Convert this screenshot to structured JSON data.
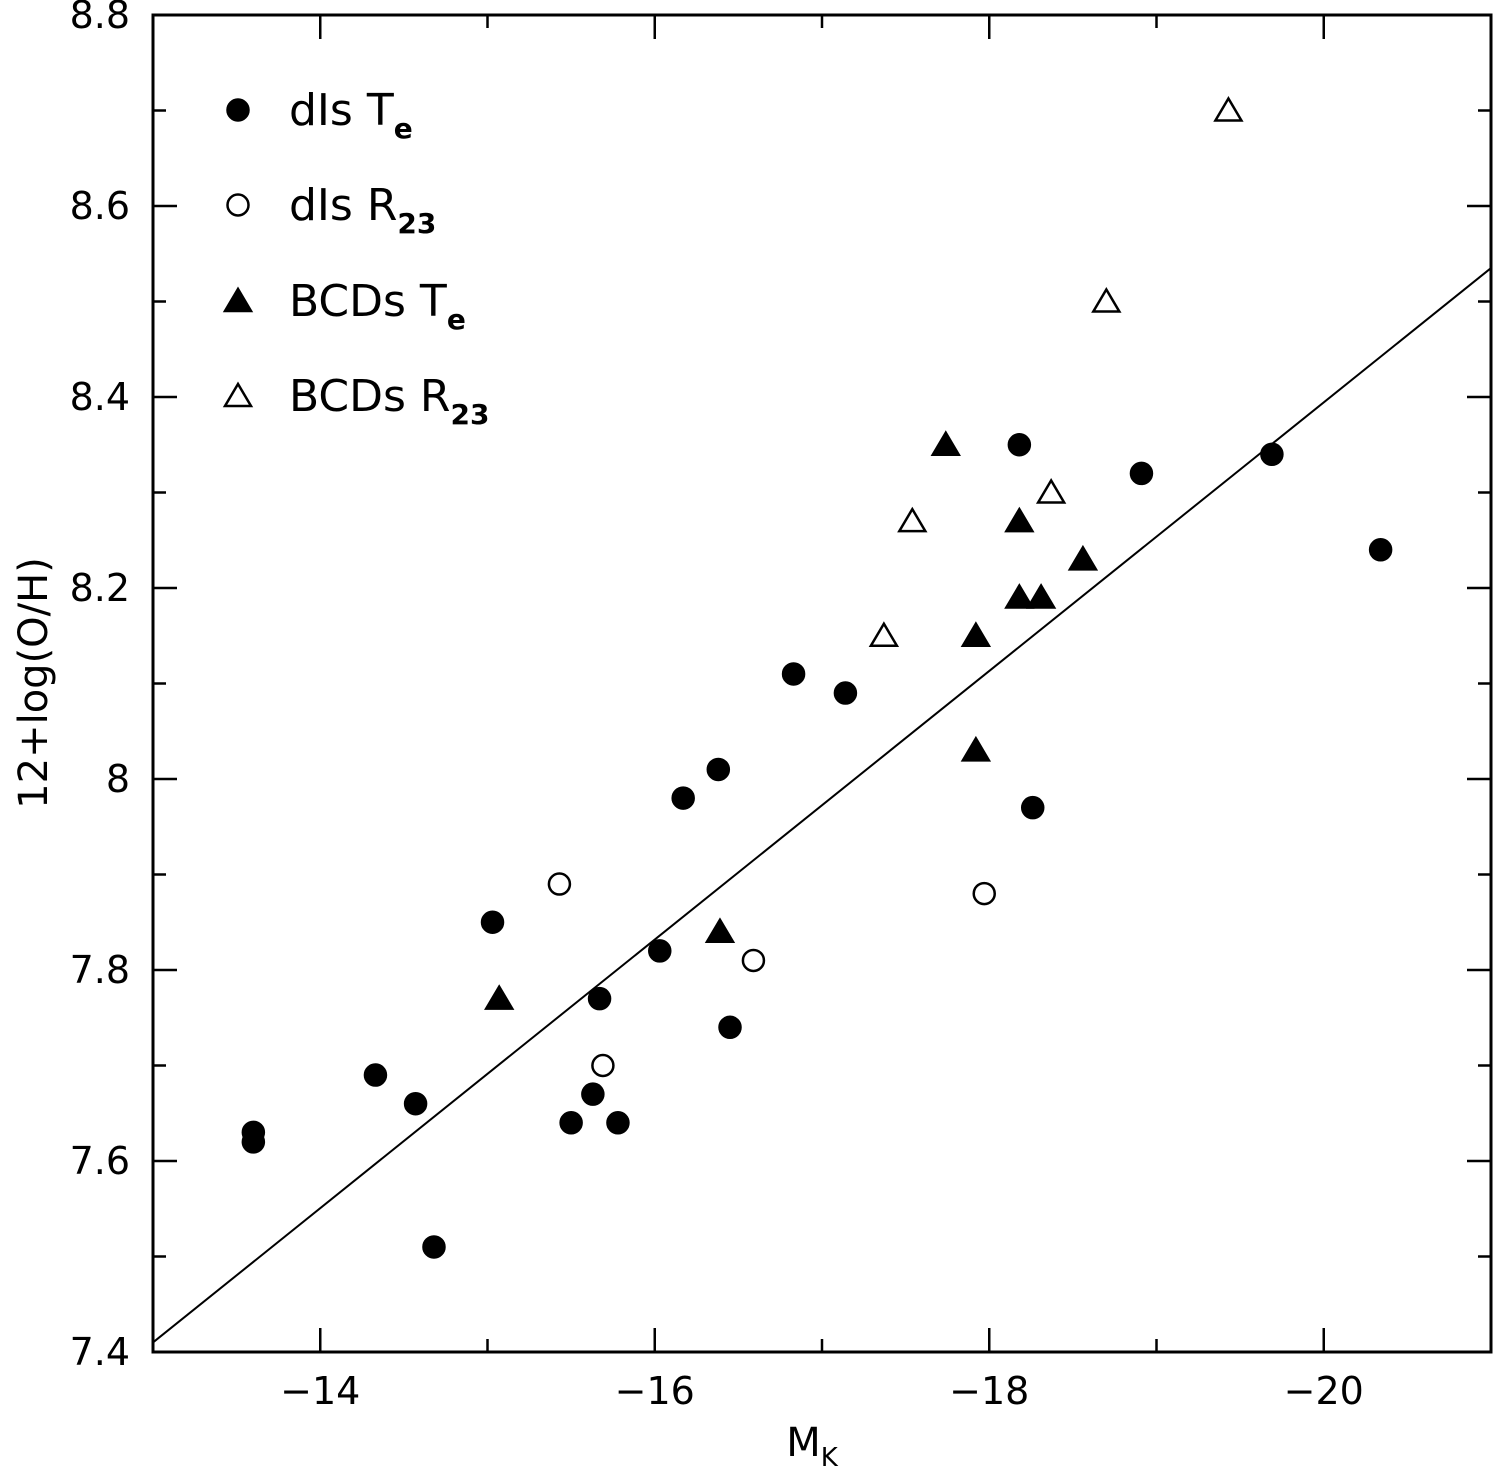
{
  "chart_data": {
    "type": "scatter",
    "title": "",
    "xlabel": "M",
    "xlabel_sub": "K",
    "ylabel": "12+log(O/H)",
    "xlim": [
      -13,
      -21
    ],
    "ylim": [
      7.4,
      8.8
    ],
    "xticks": [
      -14,
      -16,
      -18,
      -20
    ],
    "xtick_labels": [
      "−14",
      "−16",
      "−18",
      "−20"
    ],
    "yticks": [
      7.4,
      7.6,
      7.8,
      8,
      8.2,
      8.4,
      8.6,
      8.8
    ],
    "ytick_labels": [
      "7.4",
      "7.6",
      "7.8",
      "8",
      "8.2",
      "8.4",
      "8.6",
      "8.8"
    ],
    "legend_position": "top-left",
    "series": [
      {
        "name": "dIs T",
        "label_main": "dIs T",
        "label_sub": "e",
        "marker": "circle",
        "filled": true,
        "points": [
          [
            -13.6,
            7.63
          ],
          [
            -13.6,
            7.62
          ],
          [
            -14.33,
            7.69
          ],
          [
            -14.57,
            7.66
          ],
          [
            -14.68,
            7.51
          ],
          [
            -15.03,
            7.85
          ],
          [
            -15.5,
            7.64
          ],
          [
            -15.63,
            7.67
          ],
          [
            -15.67,
            7.77
          ],
          [
            -15.78,
            7.64
          ],
          [
            -16.03,
            7.82
          ],
          [
            -16.17,
            7.98
          ],
          [
            -16.38,
            8.01
          ],
          [
            -16.45,
            7.74
          ],
          [
            -16.83,
            8.11
          ],
          [
            -17.14,
            8.09
          ],
          [
            -18.18,
            8.35
          ],
          [
            -18.26,
            7.97
          ],
          [
            -18.91,
            8.32
          ],
          [
            -19.69,
            8.34
          ],
          [
            -20.34,
            8.24
          ]
        ]
      },
      {
        "name": "dIs R23",
        "label_main": "dIs R",
        "label_sub": "23",
        "marker": "circle",
        "filled": false,
        "points": [
          [
            -15.43,
            7.89
          ],
          [
            -15.69,
            7.7
          ],
          [
            -16.59,
            7.81
          ],
          [
            -17.97,
            7.88
          ]
        ]
      },
      {
        "name": "BCDs T",
        "label_main": "BCDs T",
        "label_sub": "e",
        "marker": "triangle",
        "filled": true,
        "points": [
          [
            -15.07,
            7.77
          ],
          [
            -16.39,
            7.84
          ],
          [
            -17.74,
            8.35
          ],
          [
            -17.92,
            8.15
          ],
          [
            -17.92,
            8.03
          ],
          [
            -18.18,
            8.27
          ],
          [
            -18.18,
            8.19
          ],
          [
            -18.31,
            8.19
          ],
          [
            -18.56,
            8.23
          ]
        ]
      },
      {
        "name": "BCDs R23",
        "label_main": "BCDs R",
        "label_sub": "23",
        "marker": "triangle",
        "filled": false,
        "points": [
          [
            -17.37,
            8.15
          ],
          [
            -17.54,
            8.27
          ],
          [
            -18.37,
            8.3
          ],
          [
            -18.7,
            8.5
          ],
          [
            -19.43,
            8.7
          ]
        ]
      }
    ],
    "fit_line": {
      "name": "linear fit",
      "x": [
        -13.0,
        -21.0
      ],
      "y": [
        7.41,
        8.535
      ]
    }
  }
}
